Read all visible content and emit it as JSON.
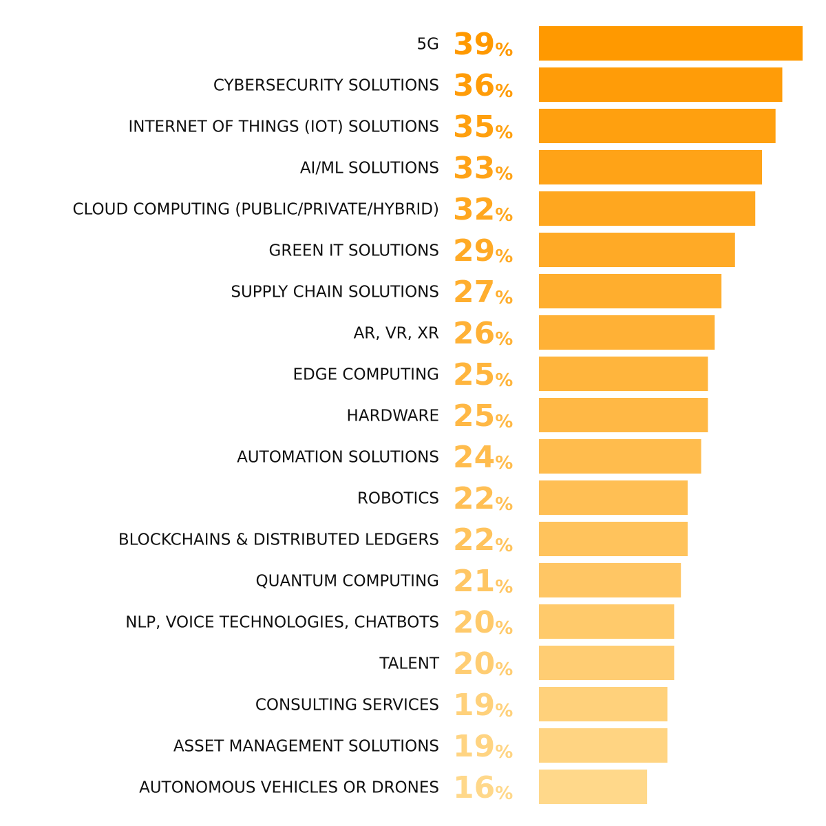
{
  "chart_data": {
    "type": "bar",
    "orientation": "horizontal",
    "categories": [
      "5G",
      "CYBERSECURITY SOLUTIONS",
      "INTERNET OF THINGS (IOT) SOLUTIONS",
      "AI/ML SOLUTIONS",
      "CLOUD COMPUTING (PUBLIC/PRIVATE/HYBRID)",
      "GREEN IT SOLUTIONS",
      "SUPPLY CHAIN SOLUTIONS",
      "AR, VR, XR",
      "EDGE COMPUTING",
      "HARDWARE",
      "AUTOMATION SOLUTIONS",
      "ROBOTICS",
      "BLOCKCHAINS & DISTRIBUTED LEDGERS",
      "QUANTUM COMPUTING",
      "NLP, VOICE TECHNOLOGIES, CHATBOTS",
      "TALENT",
      "CONSULTING SERVICES",
      "ASSET MANAGEMENT SOLUTIONS",
      "AUTONOMOUS VEHICLES OR DRONES"
    ],
    "values": [
      39,
      36,
      35,
      33,
      32,
      29,
      27,
      26,
      25,
      25,
      24,
      22,
      22,
      21,
      20,
      20,
      19,
      19,
      16
    ],
    "value_labels": [
      "39%",
      "36%",
      "35%",
      "33%",
      "32%",
      "29%",
      "27%",
      "26%",
      "25%",
      "25%",
      "24%",
      "22%",
      "22%",
      "21%",
      "20%",
      "20%",
      "19%",
      "19%",
      "16%"
    ],
    "colors": [
      "#ff9900",
      "#ff9c08",
      "#ffa00f",
      "#ffa317",
      "#ffa71f",
      "#ffaa26",
      "#ffae2e",
      "#ffb136",
      "#ffb53d",
      "#ffb845",
      "#ffbc4d",
      "#ffbf54",
      "#ffc35c",
      "#ffc664",
      "#ffca6b",
      "#ffcd73",
      "#ffd17b",
      "#ffd482",
      "#ffd88a"
    ]
  }
}
